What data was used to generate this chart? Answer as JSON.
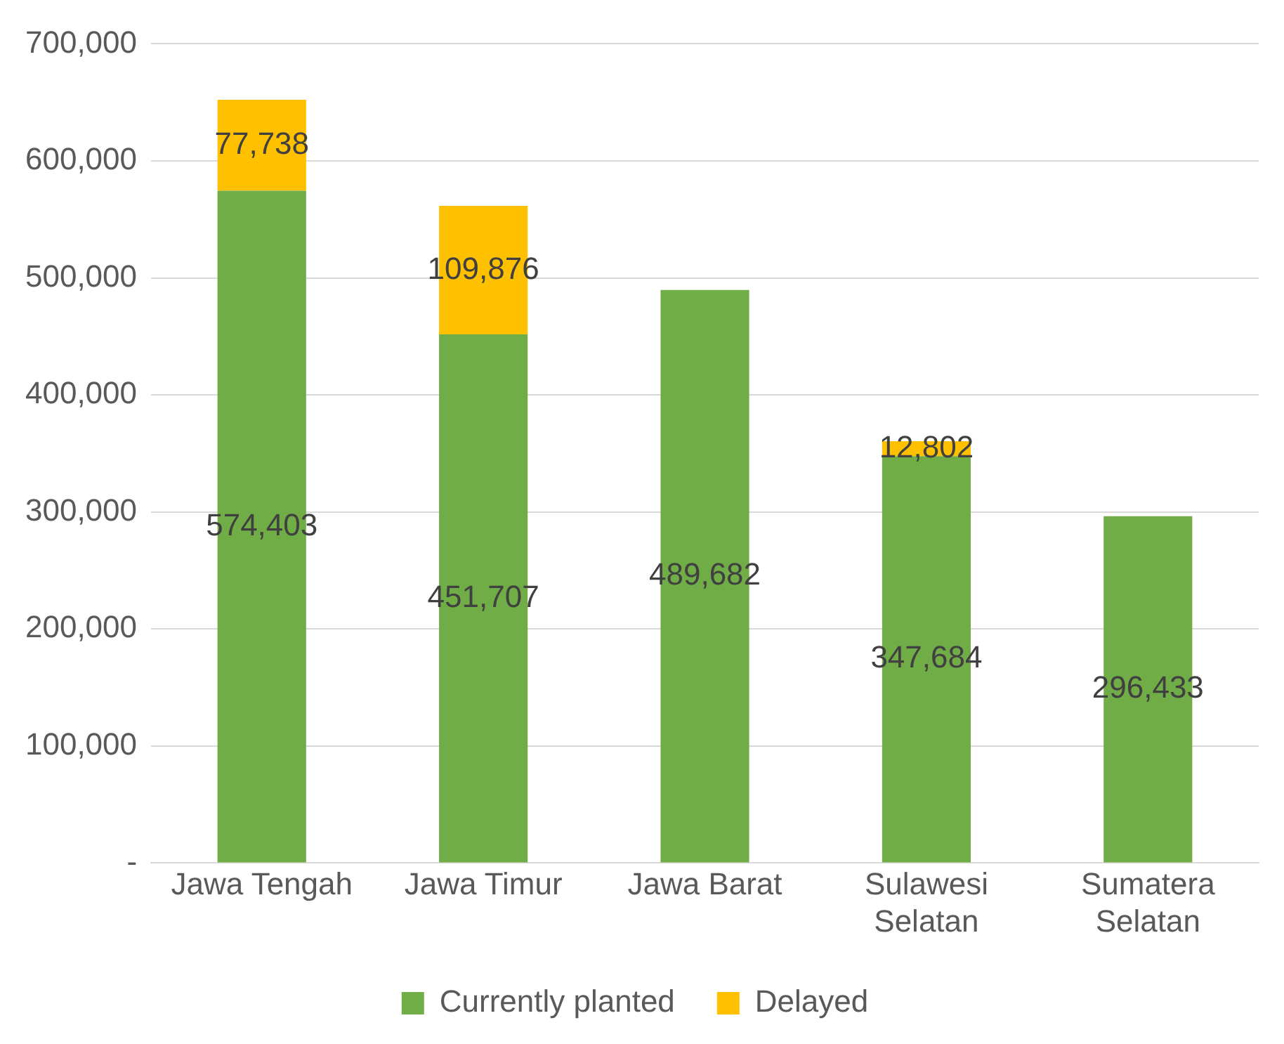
{
  "chart_data": {
    "type": "bar",
    "stacked": true,
    "categories": [
      "Jawa Tengah",
      "Jawa Timur",
      "Jawa Barat",
      "Sulawesi Selatan",
      "Sumatera Selatan"
    ],
    "series": [
      {
        "name": "Currently planted",
        "color": "#70ad47",
        "values": [
          574403,
          451707,
          489682,
          347684,
          296433
        ],
        "value_labels": [
          "574,403",
          "451,707",
          "489,682",
          "347,684",
          "296,433"
        ]
      },
      {
        "name": "Delayed",
        "color": "#ffc000",
        "values": [
          77738,
          109876,
          null,
          12802,
          null
        ],
        "value_labels": [
          "77,738",
          "109,876",
          null,
          "12,802",
          null
        ]
      }
    ],
    "ylim": [
      0,
      700000
    ],
    "yticks": [
      {
        "value": 0,
        "label": "-"
      },
      {
        "value": 100000,
        "label": "100,000"
      },
      {
        "value": 200000,
        "label": "200,000"
      },
      {
        "value": 300000,
        "label": "300,000"
      },
      {
        "value": 400000,
        "label": "400,000"
      },
      {
        "value": 500000,
        "label": "500,000"
      },
      {
        "value": 600000,
        "label": "600,000"
      },
      {
        "value": 700000,
        "label": "700,000"
      }
    ],
    "grid": "y",
    "legend": "bottom"
  }
}
